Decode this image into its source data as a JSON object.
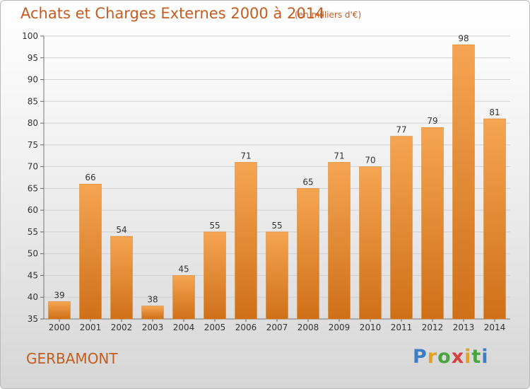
{
  "header": {
    "title": "Achats et Charges Externes 2000 à 2014",
    "unit": "(en milliers d'€)"
  },
  "footer": {
    "commune": "GERBAMONT",
    "logo": "Proxiti"
  },
  "colors": {
    "bar_top": "#f5a552",
    "bar_bottom": "#cf7018",
    "title": "#c45c20",
    "grid": "#d0d0d0"
  },
  "chart_data": {
    "type": "bar",
    "title": "Achats et Charges Externes 2000 à 2014",
    "subtitle": "(en milliers d'€)",
    "categories": [
      "2000",
      "2001",
      "2002",
      "2003",
      "2004",
      "2005",
      "2006",
      "2007",
      "2008",
      "2009",
      "2010",
      "2011",
      "2012",
      "2013",
      "2014"
    ],
    "values": [
      39,
      66,
      54,
      38,
      45,
      55,
      71,
      55,
      65,
      71,
      70,
      77,
      79,
      98,
      81
    ],
    "ylim": [
      35,
      100
    ],
    "yticks": [
      35,
      40,
      45,
      50,
      55,
      60,
      65,
      70,
      75,
      80,
      85,
      90,
      95,
      100
    ],
    "grid": true,
    "data_labels": true,
    "xlabel": "",
    "ylabel": ""
  }
}
